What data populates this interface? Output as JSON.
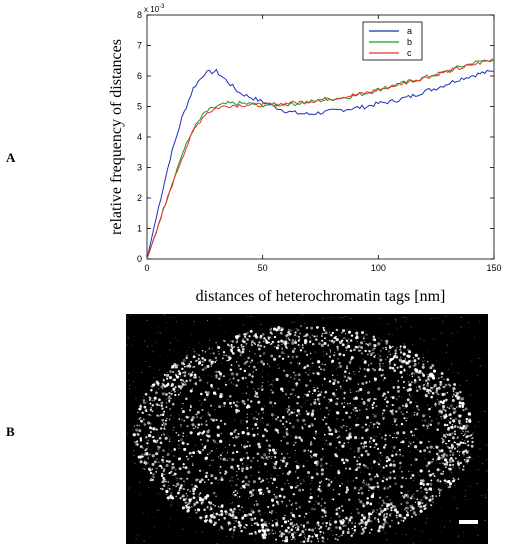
{
  "panel_labels": {
    "a": "A",
    "b": "B"
  },
  "chart_data": {
    "type": "line",
    "title": "",
    "xlabel": "distances of heterochromatin tags [nm]",
    "ylabel": "relative frequency of distances",
    "y_multiplier": "x 10",
    "y_multiplier_exp": "-3",
    "xlim": [
      0,
      150
    ],
    "ylim": [
      0,
      8
    ],
    "xticks": [
      "0",
      "50",
      "100",
      "150"
    ],
    "yticks": [
      "0",
      "1",
      "2",
      "3",
      "4",
      "5",
      "6",
      "7",
      "8"
    ],
    "legend_position": "top-right",
    "colors": {
      "a": "#1f2fbf",
      "b": "#1a9a2a",
      "c": "#e8302a"
    },
    "x": [
      0,
      5,
      10,
      15,
      20,
      25,
      30,
      35,
      40,
      45,
      50,
      55,
      60,
      65,
      70,
      75,
      80,
      85,
      90,
      95,
      100,
      105,
      110,
      115,
      120,
      125,
      130,
      135,
      140,
      145,
      150
    ],
    "series": [
      {
        "name": "a",
        "values": [
          0,
          1.7,
          3.3,
          4.6,
          5.6,
          6.1,
          6.15,
          5.8,
          5.45,
          5.3,
          5.15,
          5.0,
          4.85,
          4.78,
          4.75,
          4.8,
          4.85,
          4.9,
          4.95,
          5.0,
          5.1,
          5.15,
          5.25,
          5.35,
          5.5,
          5.6,
          5.75,
          5.9,
          6.0,
          6.1,
          6.15
        ]
      },
      {
        "name": "b",
        "values": [
          0,
          1.15,
          2.3,
          3.4,
          4.25,
          4.8,
          5.0,
          5.1,
          5.1,
          5.08,
          5.05,
          5.05,
          5.08,
          5.1,
          5.15,
          5.2,
          5.25,
          5.3,
          5.35,
          5.45,
          5.55,
          5.65,
          5.75,
          5.85,
          5.95,
          6.05,
          6.15,
          6.3,
          6.4,
          6.5,
          6.55
        ]
      },
      {
        "name": "c",
        "values": [
          0,
          1.1,
          2.25,
          3.3,
          4.2,
          4.75,
          4.95,
          5.03,
          5.05,
          5.05,
          5.05,
          5.07,
          5.1,
          5.13,
          5.17,
          5.22,
          5.27,
          5.32,
          5.38,
          5.45,
          5.55,
          5.65,
          5.75,
          5.85,
          5.95,
          6.05,
          6.15,
          6.25,
          6.35,
          6.45,
          6.55
        ]
      }
    ]
  }
}
